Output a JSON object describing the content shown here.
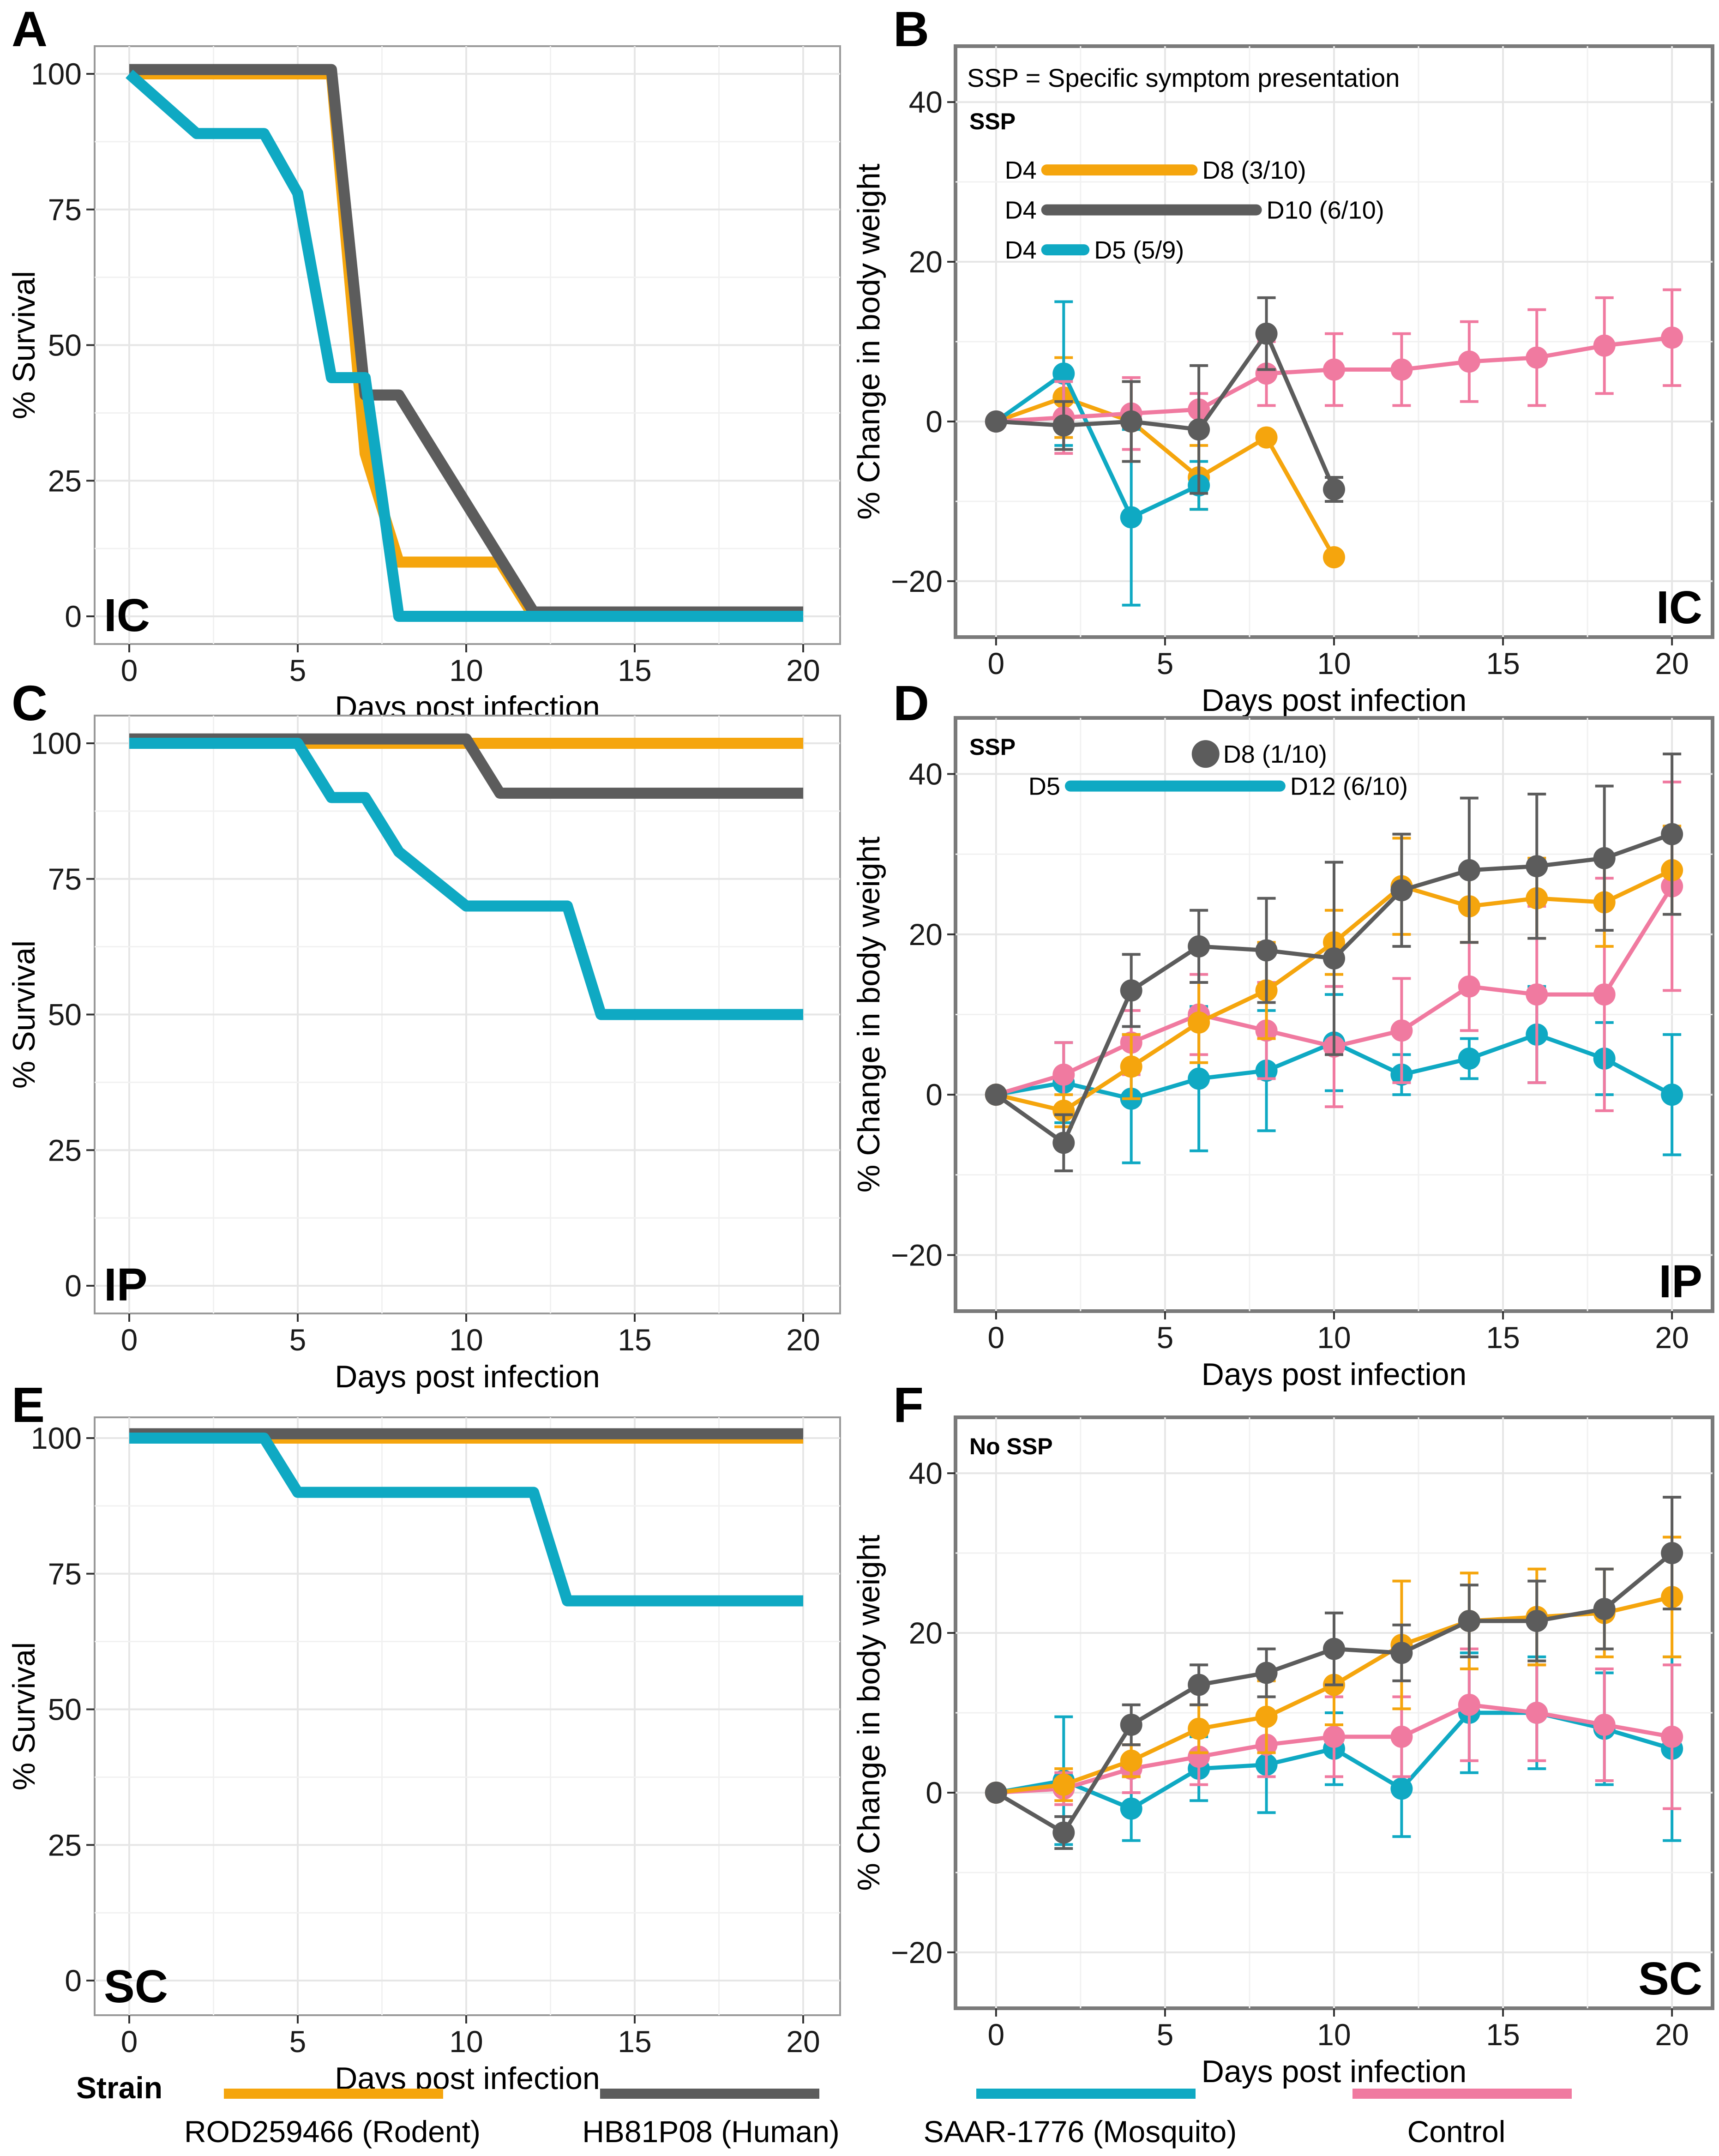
{
  "figure_title": "",
  "colors": {
    "rodent": "#f5a50d",
    "human": "#5c5c5c",
    "mosquito": "#0fa9c3",
    "control": "#f07aa0",
    "grid": "#e6e6e6",
    "frame": "#7f7f7f"
  },
  "legend": {
    "title": "Strain",
    "entries": [
      {
        "key": "rodent",
        "label": "ROD259466 (Rodent)"
      },
      {
        "key": "human",
        "label": "HB81P08 (Human)"
      },
      {
        "key": "mosquito",
        "label": "SAAR-1776 (Mosquito)"
      },
      {
        "key": "control",
        "label": "Control"
      }
    ]
  },
  "chart_data": [
    {
      "id": "A",
      "panel_letter": "A",
      "route": "IC",
      "type": "line",
      "step": true,
      "xlabel": "Days post infection",
      "ylabel": "% Survival",
      "xlim": [
        0,
        20
      ],
      "ylim": [
        0,
        100
      ],
      "x_ticks": [
        "0",
        "5",
        "10",
        "15",
        "20"
      ],
      "y_ticks": [
        "0",
        "25",
        "50",
        "75",
        "100"
      ],
      "series": [
        {
          "key": "rodent",
          "name": "ROD259466 (Rodent)",
          "x": [
            0,
            6,
            7,
            8,
            11,
            12,
            20
          ],
          "values": [
            100,
            100,
            30,
            10,
            10,
            0,
            0
          ]
        },
        {
          "key": "human",
          "name": "HB81P08 (Human)",
          "x": [
            0,
            6,
            7,
            8,
            12,
            20
          ],
          "values": [
            100,
            100,
            40,
            40,
            0,
            0
          ]
        },
        {
          "key": "mosquito",
          "name": "SAAR-1776 (Mosquito)",
          "x": [
            0,
            2,
            4,
            5,
            6,
            7,
            8,
            20
          ],
          "values": [
            100,
            89,
            89,
            78,
            44,
            44,
            0,
            0
          ]
        }
      ]
    },
    {
      "id": "B",
      "panel_letter": "B",
      "route": "IC",
      "type": "line",
      "xlabel": "Days post infection",
      "ylabel": "% Change in body weight",
      "xlim": [
        -1.2,
        21.2
      ],
      "ylim": [
        -27,
        47
      ],
      "x_ticks": [
        "0",
        "5",
        "10",
        "15",
        "20"
      ],
      "y_ticks": [
        "−20",
        "0",
        "20",
        "40"
      ],
      "note": "SSP = Specific symptom presentation",
      "ssp_label": "SSP",
      "ssp_bars": [
        {
          "key": "rodent",
          "start": 1.5,
          "end": 5.8,
          "y": 31.5,
          "start_label": "D4",
          "end_label": "D8 (3/10)"
        },
        {
          "key": "human",
          "start": 1.5,
          "end": 7.7,
          "y": 26.5,
          "start_label": "D4",
          "end_label": "D10 (6/10)"
        },
        {
          "key": "mosquito",
          "start": 1.5,
          "end": 2.6,
          "y": 21.5,
          "start_label": "D4",
          "end_label": "D5 (5/9)"
        }
      ],
      "series": [
        {
          "key": "rodent",
          "name": "ROD259466 (Rodent)",
          "x": [
            0,
            2,
            4,
            6,
            8,
            10
          ],
          "values": [
            0,
            3,
            0,
            -7,
            -2,
            -17
          ],
          "errors": [
            0,
            5,
            5,
            4,
            0,
            0
          ]
        },
        {
          "key": "mosquito",
          "name": "SAAR-1776 (Mosquito)",
          "x": [
            0,
            2,
            4,
            6
          ],
          "values": [
            0,
            6,
            -12,
            -8
          ],
          "errors": [
            0,
            9,
            11,
            3
          ]
        },
        {
          "key": "control",
          "name": "Control",
          "x": [
            0,
            2,
            4,
            6,
            8,
            10,
            12,
            14,
            16,
            18,
            20
          ],
          "values": [
            0,
            0.5,
            1,
            1.5,
            6,
            6.5,
            6.5,
            7.5,
            8,
            9.5,
            10.5
          ],
          "errors": [
            0,
            4.5,
            4.5,
            2,
            4,
            4.5,
            4.5,
            5,
            6,
            6,
            6
          ]
        },
        {
          "key": "human",
          "name": "HB81P08 (Human)",
          "x": [
            0,
            2,
            4,
            6,
            8,
            10
          ],
          "values": [
            0,
            -0.5,
            0,
            -1,
            11,
            -8.5
          ],
          "errors": [
            0,
            3,
            5,
            8,
            4.5,
            1.5
          ]
        }
      ]
    },
    {
      "id": "C",
      "panel_letter": "C",
      "route": "IP",
      "type": "line",
      "step": true,
      "xlabel": "Days post infection",
      "ylabel": "% Survival",
      "xlim": [
        0,
        20
      ],
      "ylim": [
        0,
        100
      ],
      "x_ticks": [
        "0",
        "5",
        "10",
        "15",
        "20"
      ],
      "y_ticks": [
        "0",
        "25",
        "50",
        "75",
        "100"
      ],
      "series": [
        {
          "key": "rodent",
          "name": "ROD259466 (Rodent)",
          "x": [
            0,
            20
          ],
          "values": [
            100,
            100
          ]
        },
        {
          "key": "human",
          "name": "HB81P08 (Human)",
          "x": [
            0,
            10,
            11,
            20
          ],
          "values": [
            100,
            100,
            90,
            90
          ]
        },
        {
          "key": "mosquito",
          "name": "SAAR-1776 (Mosquito)",
          "x": [
            0,
            5,
            6,
            7,
            8,
            10,
            13,
            14,
            20
          ],
          "values": [
            100,
            100,
            90,
            90,
            80,
            70,
            70,
            50,
            50
          ]
        }
      ]
    },
    {
      "id": "D",
      "panel_letter": "D",
      "route": "IP",
      "type": "line",
      "xlabel": "Days post infection",
      "ylabel": "% Change in body weight",
      "xlim": [
        -1.2,
        21.2
      ],
      "ylim": [
        -27,
        47
      ],
      "x_ticks": [
        "0",
        "5",
        "10",
        "15",
        "20"
      ],
      "y_ticks": [
        "−20",
        "0",
        "20",
        "40"
      ],
      "ssp_label": "SSP",
      "ssp_point": {
        "key": "human",
        "x": 6.2,
        "y": 42.5,
        "label": "D8 (1/10)"
      },
      "ssp_bars": [
        {
          "key": "mosquito",
          "start": 2.2,
          "end": 8.4,
          "y": 38.5,
          "start_label": "D5",
          "end_label": "D12 (6/10)"
        }
      ],
      "series": [
        {
          "key": "mosquito",
          "name": "SAAR-1776 (Mosquito)",
          "x": [
            0,
            2,
            4,
            6,
            8,
            10,
            12,
            14,
            16,
            18,
            20
          ],
          "values": [
            0,
            1.5,
            -0.5,
            2,
            3,
            6.5,
            2.5,
            4.5,
            7.5,
            4.5,
            0
          ],
          "errors": [
            0,
            5,
            8,
            9,
            7.5,
            6,
            2.5,
            2.5,
            6,
            4.5,
            7.5
          ]
        },
        {
          "key": "control",
          "name": "Control",
          "x": [
            0,
            2,
            4,
            6,
            8,
            10,
            12,
            14,
            16,
            18,
            20
          ],
          "values": [
            0,
            2.5,
            6.5,
            10,
            8,
            6,
            8,
            13.5,
            12.5,
            12.5,
            26
          ],
          "errors": [
            0,
            4,
            4,
            5,
            6,
            7.5,
            6.5,
            5.5,
            11,
            14.5,
            13
          ]
        },
        {
          "key": "rodent",
          "name": "ROD259466 (Rodent)",
          "x": [
            0,
            2,
            4,
            6,
            8,
            10,
            12,
            14,
            16,
            18,
            20
          ],
          "values": [
            0,
            -2,
            3.5,
            9,
            13,
            19,
            26,
            23.5,
            24.5,
            24,
            28
          ],
          "errors": [
            0,
            2,
            4,
            5,
            6,
            4,
            6,
            4.5,
            5,
            5.5,
            5.5
          ]
        },
        {
          "key": "human",
          "name": "HB81P08 (Human)",
          "x": [
            0,
            2,
            4,
            6,
            8,
            10,
            12,
            14,
            16,
            18,
            20
          ],
          "values": [
            0,
            -6,
            13,
            18.5,
            18,
            17,
            25.5,
            28,
            28.5,
            29.5,
            32.5
          ],
          "errors": [
            0,
            3.5,
            4.5,
            4.5,
            6.5,
            12,
            7,
            9,
            9,
            9,
            10
          ]
        }
      ]
    },
    {
      "id": "E",
      "panel_letter": "E",
      "route": "SC",
      "type": "line",
      "step": true,
      "xlabel": "Days post infection",
      "ylabel": "% Survival",
      "xlim": [
        0,
        20
      ],
      "ylim": [
        0,
        100
      ],
      "x_ticks": [
        "0",
        "5",
        "10",
        "15",
        "20"
      ],
      "y_ticks": [
        "0",
        "25",
        "50",
        "75",
        "100"
      ],
      "series": [
        {
          "key": "rodent",
          "name": "ROD259466 (Rodent)",
          "x": [
            0,
            20
          ],
          "values": [
            100,
            100
          ]
        },
        {
          "key": "human",
          "name": "HB81P08 (Human)",
          "x": [
            0,
            20
          ],
          "values": [
            100,
            100
          ]
        },
        {
          "key": "mosquito",
          "name": "SAAR-1776 (Mosquito)",
          "x": [
            0,
            4,
            5,
            12,
            13,
            20
          ],
          "values": [
            100,
            100,
            90,
            90,
            70,
            70
          ]
        }
      ]
    },
    {
      "id": "F",
      "panel_letter": "F",
      "route": "SC",
      "type": "line",
      "xlabel": "Days post infection",
      "ylabel": "% Change in body weight",
      "xlim": [
        -1.2,
        21.2
      ],
      "ylim": [
        -27,
        47
      ],
      "x_ticks": [
        "0",
        "5",
        "10",
        "15",
        "20"
      ],
      "y_ticks": [
        "−20",
        "0",
        "20",
        "40"
      ],
      "ssp_label": "No SSP",
      "series": [
        {
          "key": "mosquito",
          "name": "SAAR-1776 (Mosquito)",
          "x": [
            0,
            2,
            4,
            6,
            8,
            10,
            12,
            14,
            16,
            18,
            20
          ],
          "values": [
            0,
            1.5,
            -2,
            3,
            3.5,
            5.5,
            0.5,
            10,
            10,
            8,
            5.5
          ],
          "errors": [
            0,
            8,
            4,
            4,
            6,
            4.5,
            6,
            7.5,
            7,
            7,
            11.5
          ]
        },
        {
          "key": "control",
          "name": "Control",
          "x": [
            0,
            2,
            4,
            6,
            8,
            10,
            12,
            14,
            16,
            18,
            20
          ],
          "values": [
            0,
            0.5,
            3,
            4.5,
            6,
            7,
            7,
            11,
            10,
            8.5,
            7
          ],
          "errors": [
            0,
            2,
            3,
            3.5,
            4,
            5,
            5,
            7,
            6,
            7,
            9
          ]
        },
        {
          "key": "rodent",
          "name": "ROD259466 (Rodent)",
          "x": [
            0,
            2,
            4,
            6,
            8,
            10,
            12,
            14,
            16,
            18,
            20
          ],
          "values": [
            0,
            1,
            4,
            8,
            9.5,
            13.5,
            18.5,
            21.5,
            22,
            22.5,
            24.5
          ],
          "errors": [
            0,
            2,
            2,
            3,
            4.5,
            5,
            8,
            6,
            6,
            5.5,
            7.5
          ]
        },
        {
          "key": "human",
          "name": "HB81P08 (Human)",
          "x": [
            0,
            2,
            4,
            6,
            8,
            10,
            12,
            14,
            16,
            18,
            20
          ],
          "values": [
            0,
            -5,
            8.5,
            13.5,
            15,
            18,
            17.5,
            21.5,
            21.5,
            23,
            30
          ],
          "errors": [
            0,
            2,
            2.5,
            2.5,
            3,
            4.5,
            3.5,
            4.5,
            5,
            5,
            7
          ]
        }
      ]
    }
  ]
}
